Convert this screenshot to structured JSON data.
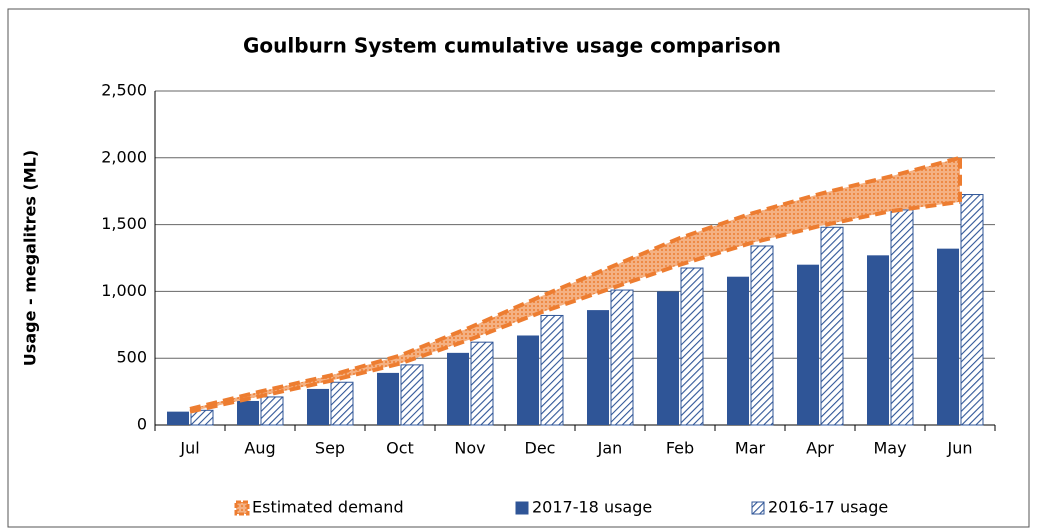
{
  "chart_data": {
    "type": "bar",
    "title": "Goulburn System cumulative usage comparison",
    "y_label": "Usage -  megalitres (ML)",
    "categories": [
      "Jul",
      "Aug",
      "Sep",
      "Oct",
      "Nov",
      "Dec",
      "Jan",
      "Feb",
      "Mar",
      "Apr",
      "May",
      "Jun"
    ],
    "series": [
      {
        "name": "Estimated demand",
        "type": "band",
        "color": "#ed7d31",
        "upper": [
          120,
          250,
          370,
          520,
          730,
          960,
          1180,
          1400,
          1580,
          1730,
          1860,
          2000
        ],
        "lower": [
          100,
          215,
          330,
          460,
          640,
          840,
          1020,
          1200,
          1360,
          1490,
          1600,
          1670
        ]
      },
      {
        "name": "2017-18 usage",
        "type": "bar",
        "color": "#2f5597",
        "values": [
          100,
          180,
          270,
          390,
          540,
          670,
          860,
          1000,
          1110,
          1200,
          1270,
          1320
        ]
      },
      {
        "name": "2016-17 usage",
        "type": "bar",
        "hatch": true,
        "color": "#2f5597",
        "values": [
          110,
          210,
          320,
          450,
          620,
          820,
          1010,
          1175,
          1340,
          1480,
          1610,
          1725
        ]
      }
    ],
    "ylim": [
      0,
      2500
    ],
    "yticks": [
      0,
      500,
      {
        "value": 1000,
        "label": "1,000"
      },
      {
        "value": 1500,
        "label": "1,500"
      },
      {
        "value": 2000,
        "label": "2,000"
      },
      {
        "value": 2500,
        "label": "2,500"
      }
    ],
    "grid": true,
    "legend": "bottom"
  }
}
